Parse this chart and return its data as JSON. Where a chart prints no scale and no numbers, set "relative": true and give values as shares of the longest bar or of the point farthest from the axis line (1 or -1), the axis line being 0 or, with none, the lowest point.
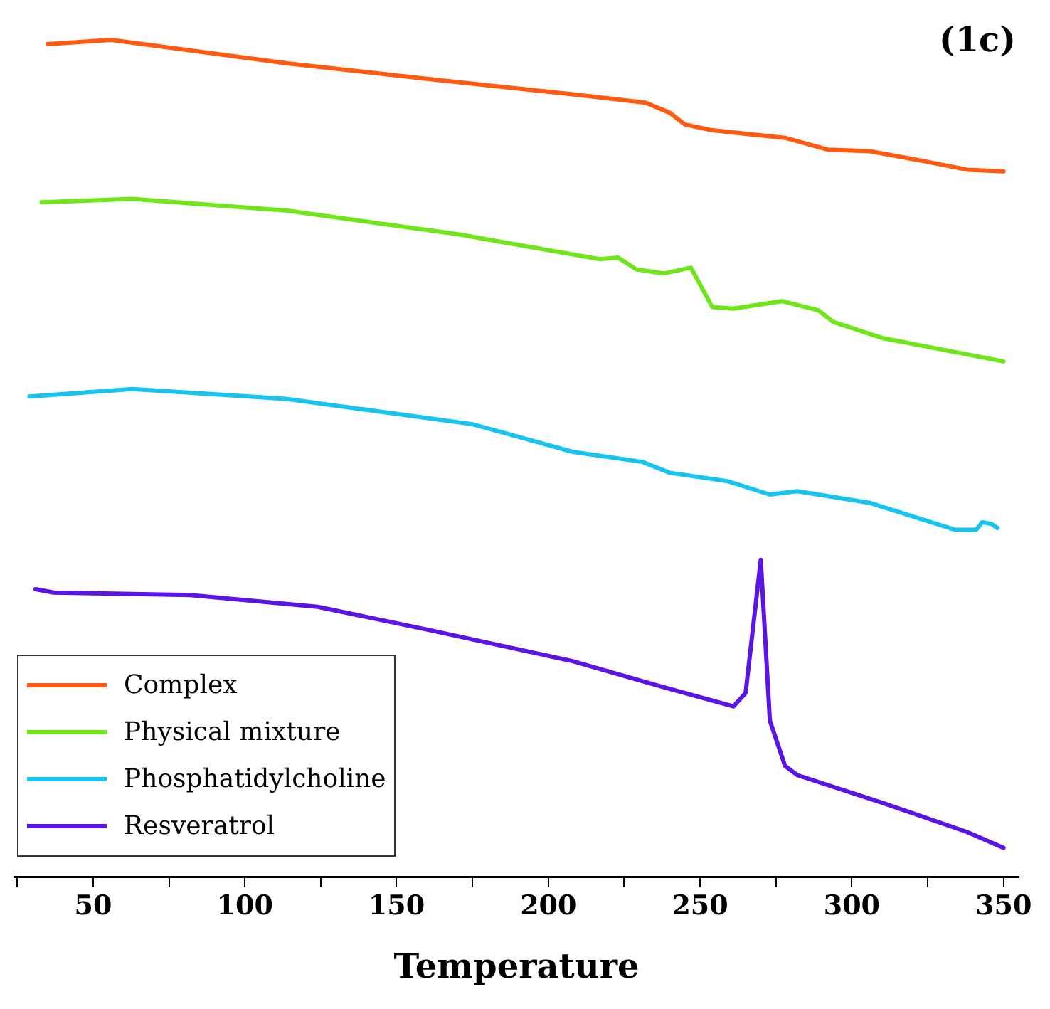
{
  "chart_data": {
    "type": "line",
    "title": "(1c)",
    "xlabel": "Temperature",
    "relative": true,
    "legend": "bottom left",
    "grid": false,
    "marker": "none",
    "line_style": "solid",
    "xlim": [
      24,
      355
    ],
    "xticks": [
      {
        "value": 25,
        "label": null
      },
      50,
      {
        "value": 75,
        "label": null
      },
      100,
      {
        "value": 125,
        "label": null
      },
      150,
      {
        "value": 175,
        "label": null
      },
      200,
      {
        "value": 225,
        "label": null
      },
      250,
      {
        "value": 275,
        "label": null
      },
      300,
      {
        "value": 325,
        "label": null
      },
      350
    ],
    "series": [
      {
        "name": "Complex",
        "color": "#ff5a10",
        "x": [
          35,
          56,
          114,
          161,
          208,
          232,
          240,
          245,
          254,
          278,
          292,
          306,
          324,
          338,
          350
        ],
        "values": [
          0.995,
          1.0,
          0.972,
          0.953,
          0.935,
          0.925,
          0.913,
          0.899,
          0.892,
          0.883,
          0.869,
          0.867,
          0.855,
          0.845,
          0.843
        ]
      },
      {
        "name": "Physical mixture",
        "color": "#6ee619",
        "x": [
          33,
          63,
          114,
          170,
          217,
          223,
          229,
          238,
          247,
          254,
          261,
          277,
          289,
          294,
          310,
          350
        ],
        "values": [
          0.806,
          0.81,
          0.796,
          0.768,
          0.738,
          0.74,
          0.726,
          0.721,
          0.728,
          0.681,
          0.679,
          0.688,
          0.677,
          0.663,
          0.644,
          0.616
        ]
      },
      {
        "name": "Phosphatidylcholine",
        "color": "#19c3f0",
        "x": [
          29,
          63,
          114,
          161,
          175,
          208,
          231,
          240,
          259,
          273,
          282,
          306,
          334,
          341,
          343,
          346,
          348
        ],
        "values": [
          0.574,
          0.583,
          0.571,
          0.548,
          0.541,
          0.508,
          0.496,
          0.483,
          0.473,
          0.457,
          0.461,
          0.447,
          0.415,
          0.415,
          0.424,
          0.422,
          0.417
        ]
      },
      {
        "name": "Resveratrol",
        "color": "#5a14e6",
        "x": [
          31,
          37,
          82,
          124,
          161,
          208,
          236,
          261,
          265,
          270,
          273,
          278,
          282,
          310,
          338,
          350
        ],
        "values": [
          0.344,
          0.34,
          0.337,
          0.323,
          0.295,
          0.258,
          0.229,
          0.204,
          0.22,
          0.379,
          0.187,
          0.133,
          0.122,
          0.089,
          0.054,
          0.035
        ]
      }
    ]
  }
}
